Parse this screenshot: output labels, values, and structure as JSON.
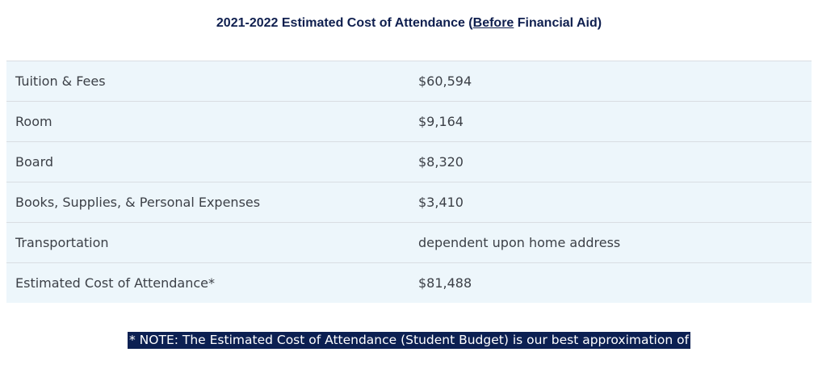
{
  "heading": {
    "prefix": "2021-2022 Estimated Cost of Attendance (",
    "emphasis": "Before",
    "suffix": " Financial Aid)"
  },
  "rows": [
    {
      "label": "Tuition & Fees",
      "value": "$60,594"
    },
    {
      "label": "Room",
      "value": "$9,164"
    },
    {
      "label": "Board",
      "value": "$8,320"
    },
    {
      "label": "Books, Supplies, & Personal Expenses",
      "value": "$3,410"
    },
    {
      "label": "Transportation",
      "value": "dependent upon home address"
    },
    {
      "label": "Estimated Cost of Attendance",
      "label_marker": "*",
      "value": "$81,488"
    }
  ],
  "note": {
    "marker": "*",
    "text": " NOTE:  The Estimated Cost of Attendance (Student Budget) is our best approximation of"
  }
}
